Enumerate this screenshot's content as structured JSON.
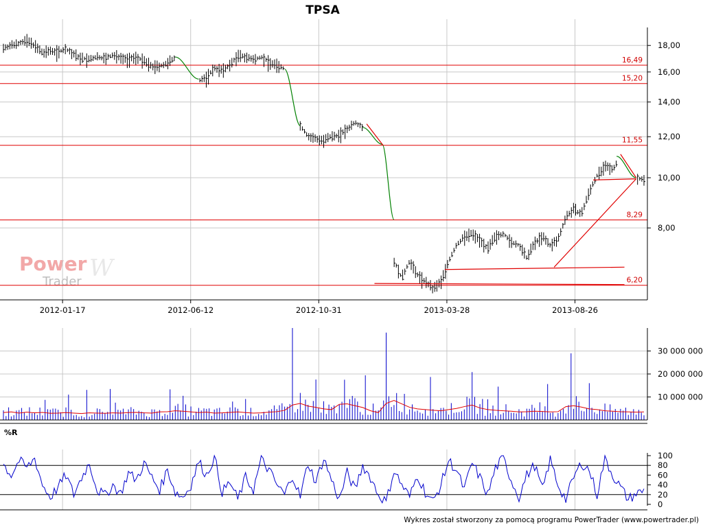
{
  "title": "TPSA",
  "footer": "Wykres został stworzony za pomocą programu PowerTrader (www.powertrader.pl)",
  "logo": {
    "word1": "Power",
    "word2": "Trader",
    "mark": "W"
  },
  "colors": {
    "price": "#000000",
    "trend": "#008000",
    "level": "#e00000",
    "volume": "#0000cc",
    "volume_avg": "#e00000",
    "wr": "#0000cc",
    "grid": "#c8c8c8",
    "logo": "#f2a8a8"
  },
  "chart_data": [
    {
      "type": "line",
      "title": "TPSA",
      "xlabel": "",
      "ylabel": "",
      "x_ticks": [
        "2012-01-17",
        "2012-06-12",
        "2012-10-31",
        "2013-03-28",
        "2013-08-26"
      ],
      "y_ticks": [
        "18,00",
        "16,00",
        "14,00",
        "12,00",
        "10,00",
        "8,00"
      ],
      "y_tick_values": [
        18,
        16,
        14,
        12,
        10,
        8
      ],
      "ylim": [
        5.9,
        19.5
      ],
      "y_scale": "log",
      "grid": true,
      "levels": [
        {
          "label": "16,49",
          "value": 16.49
        },
        {
          "label": "15,20",
          "value": 15.2
        },
        {
          "label": "11,55",
          "value": 11.55
        },
        {
          "label": "8,29",
          "value": 8.29
        },
        {
          "label": "6,20",
          "value": 6.2
        }
      ],
      "series": [
        {
          "values_as": "weekly approx closes",
          "values": [
            17.8,
            18.0,
            18.2,
            18.4,
            18.0,
            17.4,
            17.6,
            17.5,
            17.7,
            17.3,
            17.0,
            16.9,
            17.1,
            17.0,
            17.2,
            17.1,
            16.9,
            17.1,
            16.8,
            16.4,
            16.4,
            16.6,
            17.1,
            16.0,
            15.5,
            15.4,
            15.6,
            16.3,
            16.1,
            16.5,
            17.2,
            17.1,
            16.9,
            17.1,
            16.7,
            16.5,
            16.2,
            13.6,
            12.6,
            12.0,
            11.9,
            11.8,
            12.0,
            12.1,
            12.4,
            12.8,
            12.5,
            12.0,
            11.6,
            8.3,
            6.9,
            6.4,
            6.9,
            6.5,
            6.3,
            6.1,
            6.3,
            6.9,
            7.4,
            7.7,
            7.8,
            7.6,
            7.3,
            7.7,
            7.8,
            7.5,
            7.4,
            7.0,
            7.5,
            7.7,
            7.4,
            7.6,
            8.4,
            8.7,
            8.5,
            9.4,
            10.1,
            10.5,
            10.4,
            10.9,
            10.3,
            10.0,
            9.9
          ]
        }
      ],
      "trend_segments": [
        {
          "from": [
            22,
            17.1
          ],
          "to": [
            25,
            15.5
          ]
        },
        {
          "from": [
            36,
            16.2
          ],
          "to": [
            38,
            12.6
          ]
        },
        {
          "from": [
            46,
            12.5
          ],
          "to": [
            48.5,
            11.6
          ]
        },
        {
          "from": [
            48.5,
            11.6
          ],
          "to": [
            50,
            8.3
          ]
        },
        {
          "from": [
            78.5,
            11.0
          ],
          "to": [
            81,
            10.0
          ]
        }
      ],
      "red_lines": [
        {
          "from": [
            46.5,
            12.7
          ],
          "to": [
            48.6,
            11.55
          ]
        },
        {
          "from": [
            47.5,
            6.25
          ],
          "to": [
            79.5,
            6.22
          ]
        },
        {
          "from": [
            56.5,
            6.65
          ],
          "to": [
            79.5,
            6.72
          ]
        },
        {
          "from": [
            70.5,
            6.72
          ],
          "to": [
            81,
            9.95
          ]
        },
        {
          "from": [
            75.5,
            9.9
          ],
          "to": [
            81,
            9.95
          ]
        },
        {
          "from": [
            79,
            11.1
          ],
          "to": [
            81,
            10.0
          ]
        }
      ]
    },
    {
      "type": "bar",
      "title": "",
      "y_ticks": [
        "30 000 000",
        "20 000 000",
        "10 000 000"
      ],
      "y_tick_values": [
        30000000,
        20000000,
        10000000
      ],
      "ylim": [
        0,
        40000000
      ],
      "spikes": [
        {
          "x": 37,
          "value": 40000000
        },
        {
          "x": 49,
          "value": 38000000
        },
        {
          "x": 72.5,
          "value": 29000000
        },
        {
          "x": 43.5,
          "value": 17500000
        },
        {
          "x": 23,
          "value": 10500000
        },
        {
          "x": 62,
          "value": 9000000
        },
        {
          "x": 75,
          "value": 16000000
        }
      ],
      "baseline_value": 3000000,
      "avg_series": {
        "values": [
          3.2,
          3.5,
          3.0,
          3.4,
          3.1,
          3.3,
          2.9,
          3.0,
          3.2,
          3.0,
          2.8,
          3.1,
          3.0,
          2.9,
          3.1,
          3.0,
          3.2,
          3.3,
          3.1,
          3.0,
          3.5,
          3.6,
          4.0,
          3.8,
          3.5,
          3.2,
          3.4,
          3.0,
          3.1,
          3.3,
          3.5,
          3.2,
          3.0,
          3.1,
          3.4,
          3.6,
          4.2,
          6.5,
          7.2,
          6.0,
          5.5,
          4.8,
          4.5,
          6.8,
          7.0,
          6.2,
          5.4,
          4.0,
          3.2,
          7.2,
          8.5,
          7.0,
          5.5,
          4.8,
          4.5,
          4.2,
          4.0,
          4.5,
          5.0,
          5.8,
          6.5,
          5.2,
          4.5,
          4.2,
          4.0,
          3.8,
          3.5,
          3.6,
          3.8,
          3.7,
          3.5,
          3.6,
          5.8,
          6.2,
          5.6,
          4.8,
          4.5,
          4.0,
          3.8,
          3.6,
          3.5,
          3.4,
          3.5
        ]
      }
    },
    {
      "type": "line",
      "title": "%R",
      "y_ticks": [
        "100",
        "80",
        "60",
        "40",
        "20",
        "0"
      ],
      "y_tick_values": [
        100,
        80,
        60,
        40,
        20,
        0
      ],
      "ylim": [
        0,
        100
      ],
      "h_lines": [
        80,
        20
      ],
      "series": [
        {
          "name": "%R",
          "values": [
            82,
            60,
            90,
            75,
            95,
            40,
            15,
            35,
            60,
            20,
            55,
            85,
            30,
            18,
            40,
            22,
            65,
            50,
            85,
            55,
            30,
            72,
            25,
            15,
            40,
            88,
            60,
            98,
            25,
            45,
            10,
            55,
            30,
            92,
            70,
            40,
            20,
            60,
            15,
            85,
            45,
            95,
            50,
            10,
            65,
            30,
            80,
            55,
            20,
            5,
            70,
            40,
            15,
            60,
            25,
            5,
            40,
            90,
            70,
            30,
            85,
            55,
            20,
            75,
            95,
            50,
            15,
            60,
            80,
            30,
            92,
            40,
            10,
            55,
            85,
            70,
            20,
            95,
            60,
            35,
            10,
            22,
            28
          ]
        }
      ]
    }
  ]
}
